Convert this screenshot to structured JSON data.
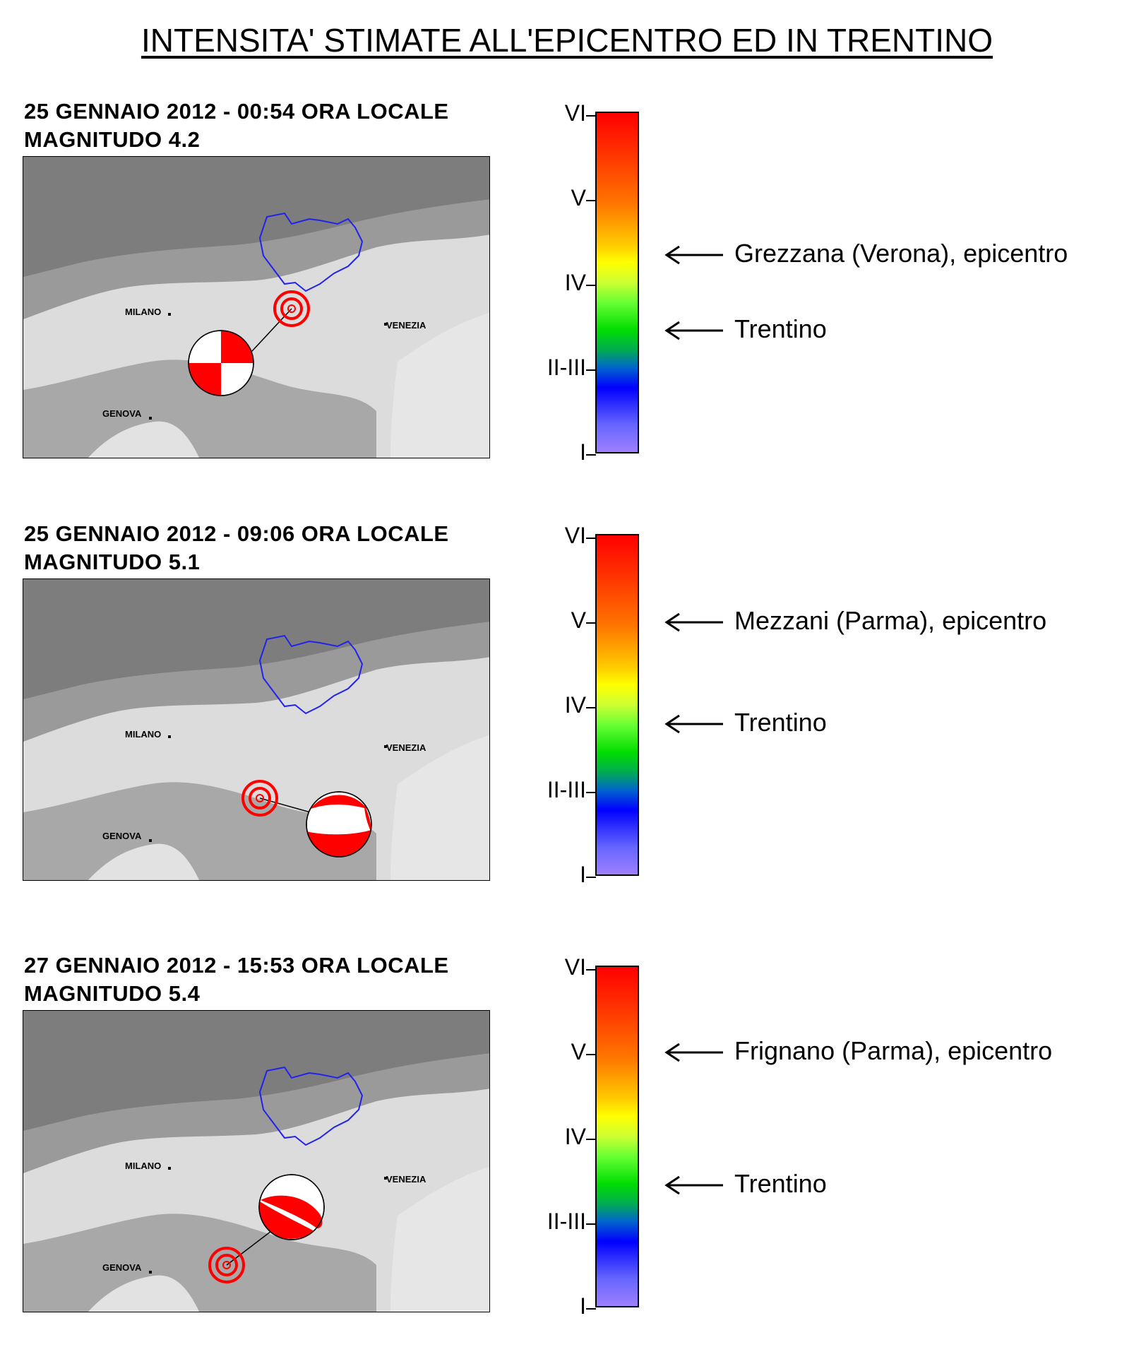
{
  "title": "INTENSITA' STIMATE ALL'EPICENTRO ED IN TRENTINO",
  "scale_levels": [
    "VI",
    "V",
    "IV",
    "II-III",
    "I"
  ],
  "map_cities": {
    "milano": "MILANO",
    "venezia": "VENEZIA",
    "genova": "GENOVA"
  },
  "colors": {
    "trentino_border": "#2222ee",
    "epicenter": "#ff0000",
    "mechanism_fill": "#ff0000"
  },
  "panels": [
    {
      "date_line": "25 GENNAIO 2012 - 00:54 ORA LOCALE",
      "magnitude_line": "MAGNITUDO 4.2",
      "epicentre_label": "Grezzana (Verona), epicentro",
      "epicentre_intensity": 4.5,
      "trentino_label": "Trentino",
      "trentino_intensity": 3.5
    },
    {
      "date_line": "25 GENNAIO 2012 - 09:06 ORA LOCALE",
      "magnitude_line": "MAGNITUDO 5.1",
      "epicentre_label": "Mezzani (Parma), epicentro",
      "epicentre_intensity": 5.0,
      "trentino_label": "Trentino",
      "trentino_intensity": 3.85
    },
    {
      "date_line": "27 GENNAIO 2012 - 15:53 ORA LOCALE",
      "magnitude_line": "MAGNITUDO 5.4",
      "epicentre_label": "Frignano (Parma), epicentro",
      "epicentre_intensity": 5.0,
      "trentino_label": "Trentino",
      "trentino_intensity": 3.5
    }
  ]
}
